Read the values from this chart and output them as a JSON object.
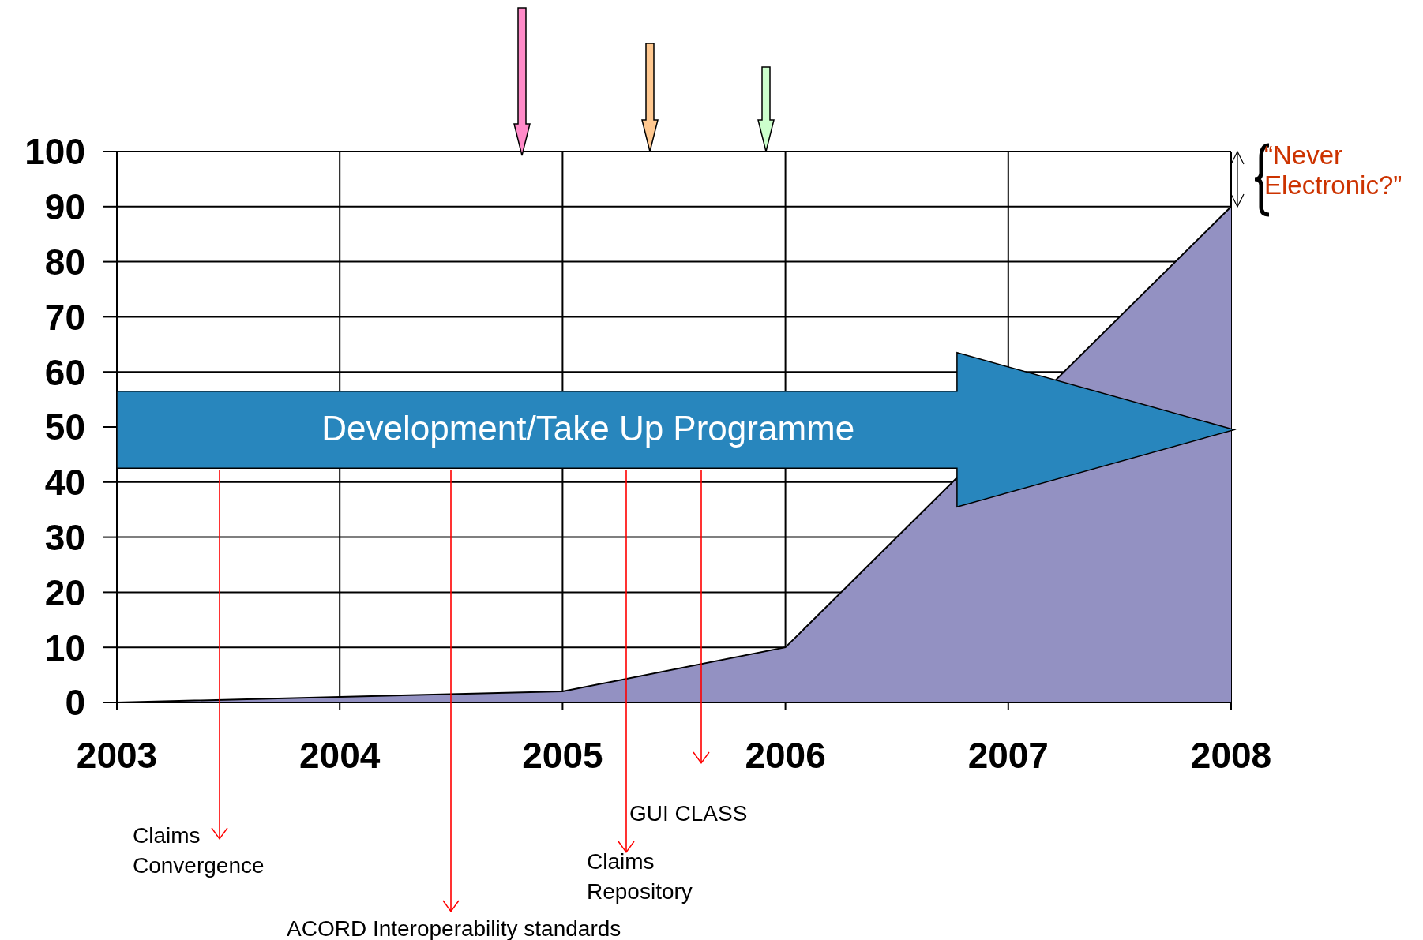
{
  "chart_data": {
    "type": "area",
    "x": [
      2003,
      2004,
      2005,
      2006,
      2007,
      2008
    ],
    "series": [
      {
        "color": "#9391c2",
        "values": [
          0,
          1,
          2,
          10,
          null,
          90
        ]
      }
    ],
    "xlim": [
      2003,
      2008
    ],
    "xticks": [
      2003,
      2004,
      2005,
      2006,
      2007,
      2008
    ],
    "ylim": [
      0,
      100
    ],
    "yticks": [
      0,
      10,
      20,
      30,
      40,
      50,
      60,
      70,
      80,
      90,
      100
    ],
    "grid": true,
    "legend": false,
    "annotations": [
      "Development/Take Up Programme",
      "“Never Electronic?”",
      "Claims Convergence",
      "ACORD Interoperability standards",
      "Claims Repository",
      "GUI CLASS"
    ]
  }
}
